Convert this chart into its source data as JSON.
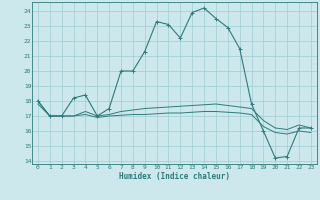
{
  "xlabel": "Humidex (Indice chaleur)",
  "bg_color": "#cce8ec",
  "grid_color": "#9ecdd4",
  "line_color": "#2d7b7b",
  "xlim": [
    -0.5,
    23.5
  ],
  "ylim": [
    13.8,
    24.6
  ],
  "yticks": [
    14,
    15,
    16,
    17,
    18,
    19,
    20,
    21,
    22,
    23,
    24
  ],
  "xticks": [
    0,
    1,
    2,
    3,
    4,
    5,
    6,
    7,
    8,
    9,
    10,
    11,
    12,
    13,
    14,
    15,
    16,
    17,
    18,
    19,
    20,
    21,
    22,
    23
  ],
  "line1_x": [
    0,
    1,
    2,
    3,
    4,
    5,
    6,
    7,
    8,
    9,
    10,
    11,
    12,
    13,
    14,
    15,
    16,
    17,
    18,
    19,
    20,
    21,
    22,
    23
  ],
  "line1_y": [
    18,
    17,
    17,
    18.2,
    18.4,
    17,
    17.5,
    20,
    20,
    21.3,
    23.3,
    23.1,
    22.2,
    23.9,
    24.2,
    23.5,
    22.9,
    21.5,
    17.8,
    16,
    14.2,
    14.3,
    16.2,
    16.2
  ],
  "line2_x": [
    0,
    1,
    2,
    3,
    4,
    5,
    6,
    7,
    8,
    9,
    10,
    11,
    12,
    13,
    14,
    15,
    16,
    17,
    18,
    19,
    20,
    21,
    22,
    23
  ],
  "line2_y": [
    18,
    17,
    17,
    17,
    17.3,
    17,
    17.1,
    17.3,
    17.4,
    17.5,
    17.55,
    17.6,
    17.65,
    17.7,
    17.75,
    17.8,
    17.7,
    17.6,
    17.5,
    16.7,
    16.2,
    16.1,
    16.4,
    16.2
  ],
  "line3_x": [
    0,
    1,
    2,
    3,
    4,
    5,
    6,
    7,
    8,
    9,
    10,
    11,
    12,
    13,
    14,
    15,
    16,
    17,
    18,
    19,
    20,
    21,
    22,
    23
  ],
  "line3_y": [
    17.8,
    17,
    17,
    17,
    17.1,
    16.9,
    17.0,
    17.05,
    17.1,
    17.1,
    17.15,
    17.2,
    17.2,
    17.25,
    17.3,
    17.3,
    17.25,
    17.2,
    17.1,
    16.3,
    15.9,
    15.8,
    16.0,
    15.9
  ]
}
